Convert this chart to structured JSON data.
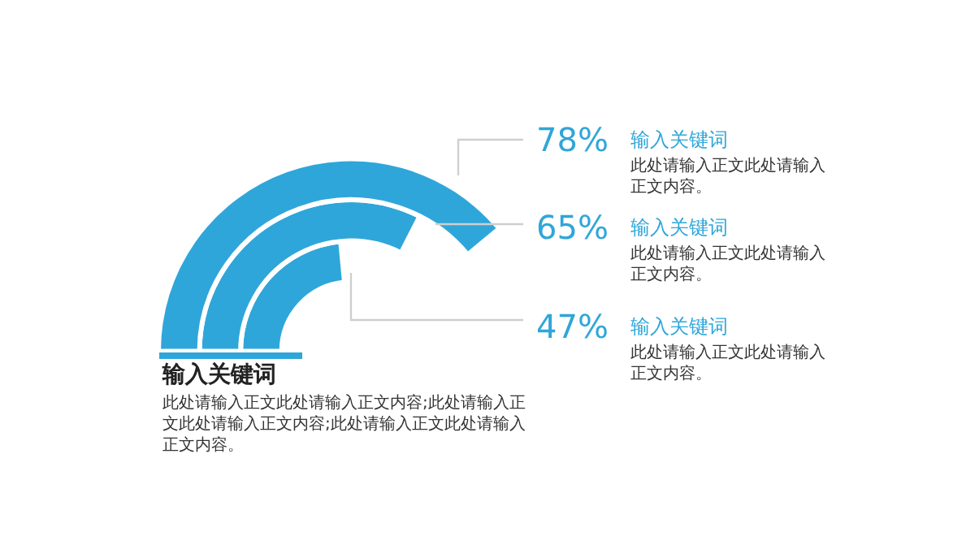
{
  "chart_data": {
    "type": "other",
    "title": "输入关键词",
    "subtitle": "此处请输入正文此处请输入正文内容;此处请输入正文此处请输入正文内容;此处请输入正文此处请输入正文内容。",
    "categories": [
      "输入关键词",
      "输入关键词",
      "输入关键词"
    ],
    "values": [
      78,
      65,
      47
    ],
    "value_labels": [
      "78%",
      "65%",
      "47%"
    ],
    "color": "#2fa6d9",
    "annotations": [
      "此处请输入正文此处请输入正文内容。",
      "此处请输入正文此处请输入正文内容。",
      "此处请输入正文此处请输入正文内容。"
    ]
  }
}
